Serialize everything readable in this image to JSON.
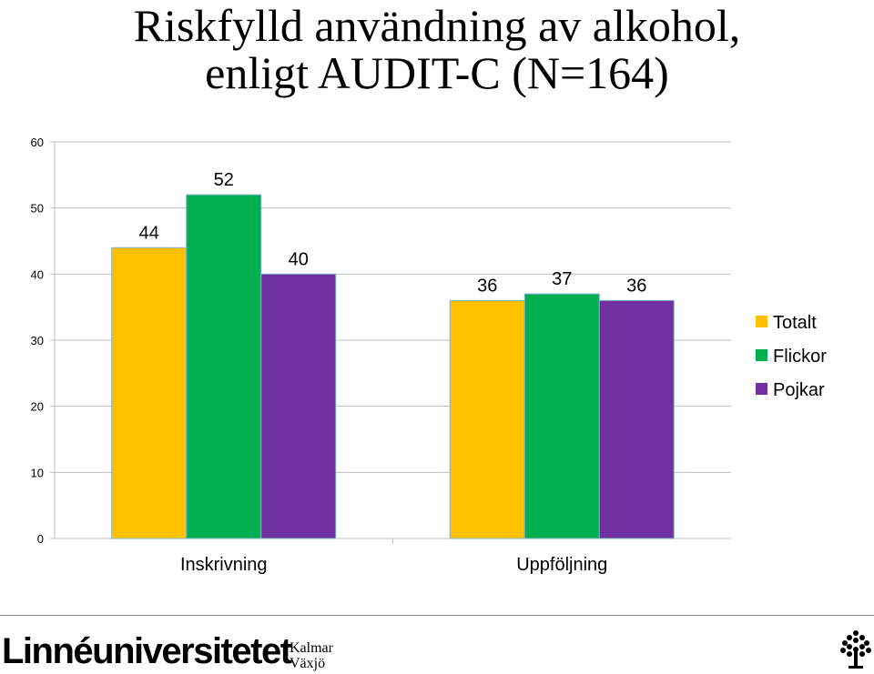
{
  "title": {
    "line1": "Riskfylld användning av alkohol,",
    "line2": "enligt AUDIT-C (N=164)"
  },
  "chart_data": {
    "type": "bar",
    "categories": [
      "Inskrivning",
      "Uppföljning"
    ],
    "series": [
      {
        "name": "Totalt",
        "values": [
          44,
          36
        ],
        "color": "#ffc000"
      },
      {
        "name": "Flickor",
        "values": [
          52,
          37
        ],
        "color": "#00b050"
      },
      {
        "name": "Pojkar",
        "values": [
          40,
          36
        ],
        "color": "#7030a0"
      }
    ],
    "yticks": [
      0,
      10,
      20,
      30,
      40,
      50,
      60
    ],
    "ylim": [
      0,
      60
    ],
    "grid": true,
    "legend": "right",
    "data_labels": true
  },
  "footer": {
    "logo": "Linnéuniversitetet",
    "campus_1": "Kalmar",
    "campus_2": "Växjö"
  },
  "colors": {
    "axis": "#bfbfbf",
    "grid": "#bfbfbf",
    "footer_rule": "#8c8c8c"
  },
  "icons": {
    "logo_mark": "tree-icon"
  }
}
